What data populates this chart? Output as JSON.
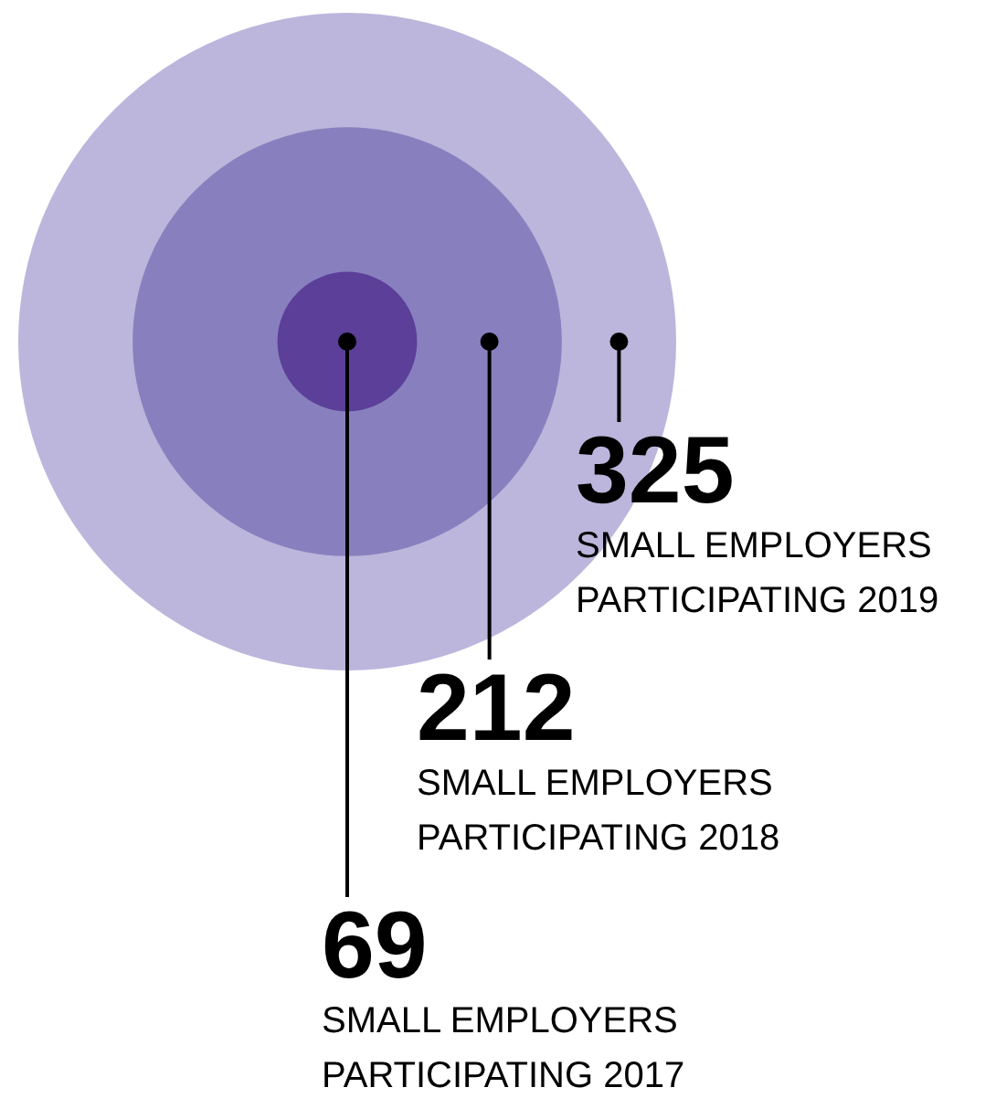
{
  "chart_data": {
    "type": "other",
    "categories": [
      "SMALL EMPLOYERS PARTICIPATING 2019",
      "SMALL EMPLOYERS PARTICIPATING 2018",
      "SMALL EMPLOYERS PARTICIPATING 2017"
    ],
    "values": [
      325,
      212,
      69
    ],
    "colors": [
      "#bcb6dc",
      "#8880be",
      "#5b3f99"
    ],
    "data_labels": true
  }
}
